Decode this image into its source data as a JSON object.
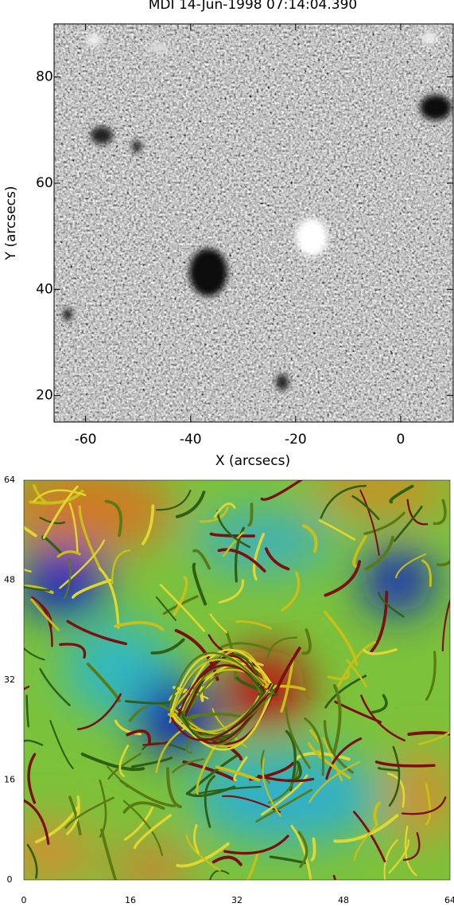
{
  "chart_data": [
    {
      "type": "image",
      "title": "MDI 14-Jun-1998 07:14:04.390",
      "xlabel": "X (arcsecs)",
      "ylabel": "Y (arcsecs)",
      "xlim": [
        -66,
        10
      ],
      "ylim": [
        15,
        90
      ],
      "xticks": [
        -60,
        -40,
        -20,
        0
      ],
      "yticks": [
        20,
        40,
        60,
        80
      ]
    },
    {
      "type": "image",
      "xlim": [
        0,
        64
      ],
      "ylim": [
        0,
        64
      ],
      "xticks": [
        0,
        16,
        32,
        48,
        64
      ],
      "yticks": [
        0,
        16,
        32,
        48,
        64
      ]
    }
  ]
}
